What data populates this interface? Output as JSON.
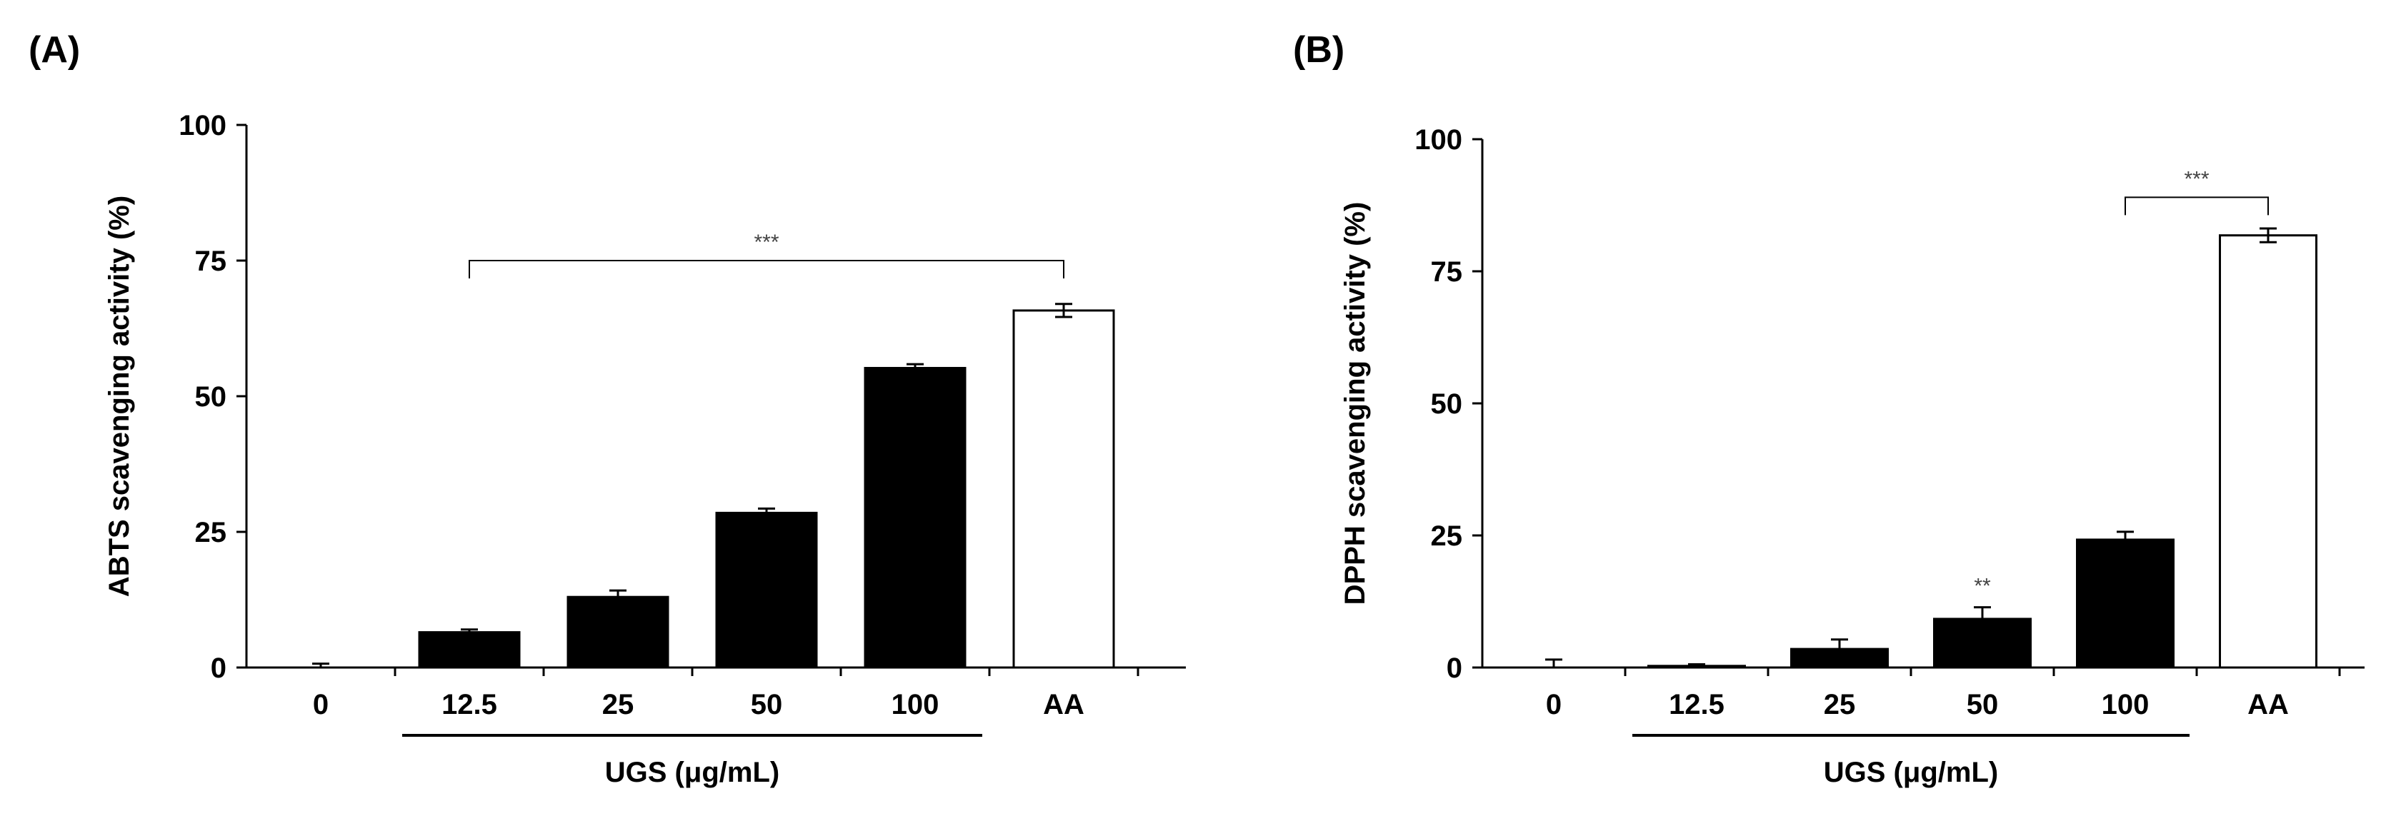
{
  "panels": [
    {
      "label": "(A)",
      "chart_data": {
        "type": "bar",
        "categories": [
          "0",
          "12.5",
          "25",
          "50",
          "100",
          "AA"
        ],
        "values": [
          0,
          6.5,
          13,
          28.5,
          55.2,
          65.8
        ],
        "errors": [
          0.7,
          0.5,
          1.2,
          0.8,
          0.7,
          1.2
        ],
        "fills": [
          "#000000",
          "#000000",
          "#000000",
          "#000000",
          "#000000",
          "#ffffff"
        ],
        "ylabel": "ABTS scavenging activity (%)",
        "xlabel": "UGS (μg/mL)",
        "ylim": [
          0,
          100
        ],
        "yticks": [
          "0",
          "25",
          "50",
          "75",
          "100"
        ],
        "group_range": [
          "12.5",
          "100"
        ],
        "bracket": {
          "from": "12.5",
          "to": "AA",
          "text": "***",
          "level": 75
        },
        "markers": []
      }
    },
    {
      "label": "(B)",
      "chart_data": {
        "type": "bar",
        "categories": [
          "0",
          "12.5",
          "25",
          "50",
          "100",
          "AA"
        ],
        "values": [
          0,
          0.3,
          3.5,
          9.2,
          24.2,
          81.8
        ],
        "errors": [
          1.5,
          0.3,
          1.8,
          2.2,
          1.5,
          1.3
        ],
        "fills": [
          "#000000",
          "#000000",
          "#000000",
          "#000000",
          "#000000",
          "#ffffff"
        ],
        "ylabel": "DPPH scavenging activity (%)",
        "xlabel": "UGS (μg/mL)",
        "ylim": [
          0,
          100
        ],
        "yticks": [
          "0",
          "25",
          "50",
          "75",
          "100"
        ],
        "group_range": [
          "12.5",
          "100"
        ],
        "bracket": {
          "from": "100",
          "to": "AA",
          "text": "***",
          "level": 89
        },
        "markers": [
          {
            "category": "50",
            "text": "**"
          }
        ]
      }
    }
  ]
}
